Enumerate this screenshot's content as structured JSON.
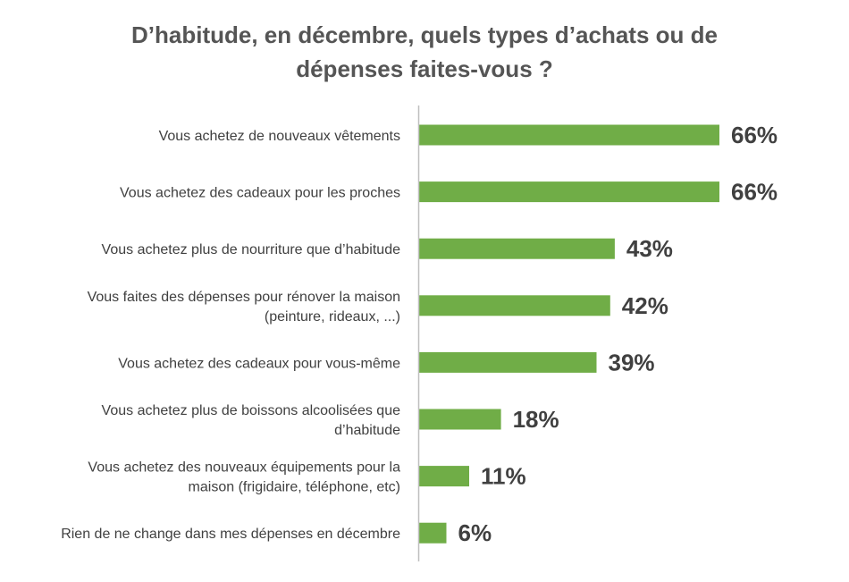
{
  "chart_data": {
    "type": "bar",
    "orientation": "horizontal",
    "title_lines": [
      "D’habitude, en décembre, quels types d’achats ou de",
      "dépenses faites-vous ?"
    ],
    "categories": [
      [
        "Vous achetez de nouveaux vêtements"
      ],
      [
        "Vous achetez des cadeaux pour les proches"
      ],
      [
        "Vous achetez plus de nourriture que d’habitude"
      ],
      [
        "Vous faites des dépenses pour rénover la maison",
        "(peinture, rideaux, ...)"
      ],
      [
        "Vous achetez des cadeaux pour vous-même"
      ],
      [
        "Vous achetez plus de boissons alcoolisées que",
        "d’habitude"
      ],
      [
        "Vous achetez des nouveaux équipements pour la",
        "maison (frigidaire, téléphone, etc)"
      ],
      [
        "Rien de ne change dans mes dépenses en décembre"
      ]
    ],
    "values": [
      66,
      66,
      43,
      42,
      39,
      18,
      11,
      6
    ],
    "value_labels": [
      "66%",
      "66%",
      "43%",
      "42%",
      "39%",
      "18%",
      "11%",
      "6%"
    ],
    "unit": "%",
    "xlim": [
      0,
      100
    ],
    "grid": false,
    "legend": "none",
    "bar_color": "#70AD47",
    "axis_color": "#BFBFBF"
  }
}
